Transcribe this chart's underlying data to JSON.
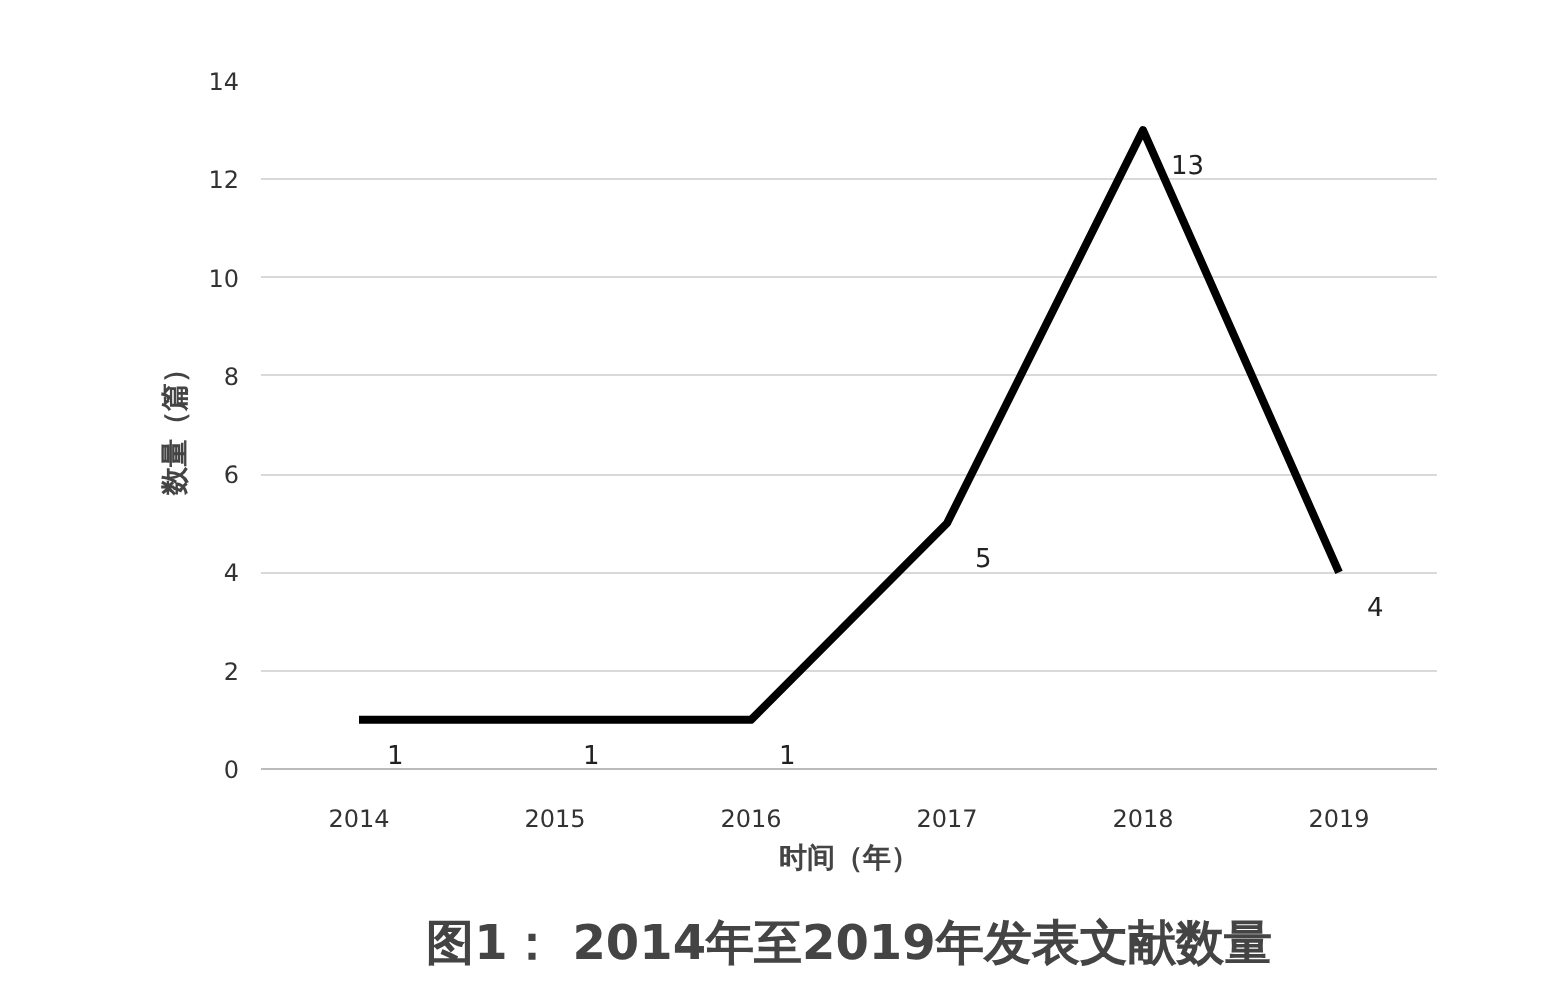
{
  "chart_data": {
    "type": "line",
    "title": "图1： 2014年至2019年发表文献数量",
    "xlabel": "时间（年）",
    "ylabel": "数量（篇）",
    "categories": [
      "2014",
      "2015",
      "2016",
      "2017",
      "2018",
      "2019"
    ],
    "series": [
      {
        "color": "#000000",
        "values": [
          1,
          1,
          1,
          5,
          13,
          4
        ]
      }
    ],
    "ylim": [
      0,
      14
    ],
    "yticks": [
      0,
      2,
      4,
      6,
      8,
      10,
      12,
      14
    ],
    "grid": "y",
    "data_labels": true,
    "marker": "none",
    "line_style": "solid"
  }
}
